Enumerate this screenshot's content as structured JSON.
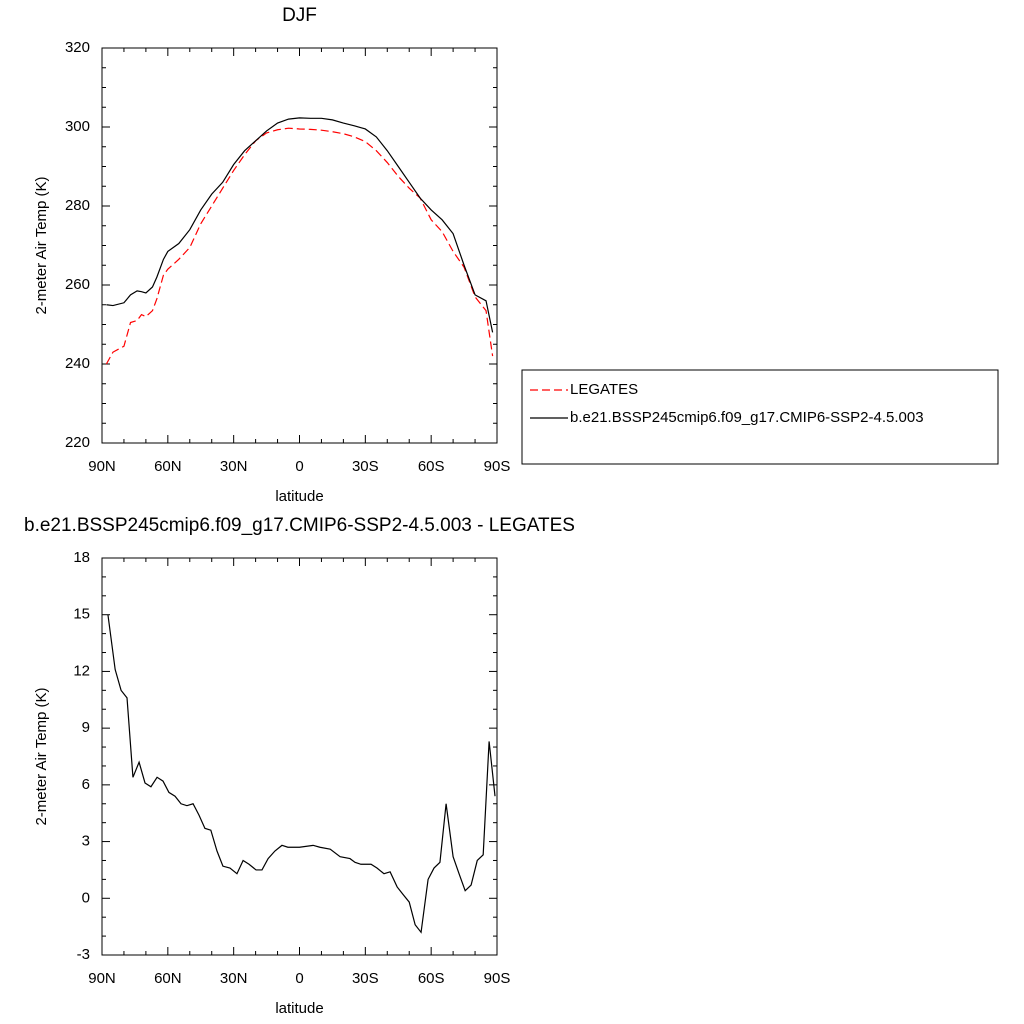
{
  "chart_data": [
    {
      "type": "line",
      "title": "DJF",
      "x_label": "latitude",
      "y_label": "2-meter Air Temp (K)",
      "xlim": [
        90,
        -90
      ],
      "xticks": [
        {
          "value": 90,
          "label": "90N"
        },
        {
          "value": 60,
          "label": "60N"
        },
        {
          "value": 30,
          "label": "30N"
        },
        0,
        {
          "value": -30,
          "label": "30S"
        },
        {
          "value": -60,
          "label": "60S"
        },
        {
          "value": -90,
          "label": "90S"
        }
      ],
      "ylim": [
        220,
        320
      ],
      "yticks": [
        220,
        240,
        260,
        280,
        300,
        320
      ],
      "legend": "right",
      "x": [
        88,
        85,
        80,
        77,
        74,
        72,
        70,
        67,
        65,
        62,
        60,
        55,
        50,
        45,
        40,
        35,
        30,
        25,
        20,
        15,
        10,
        5,
        0,
        -5,
        -10,
        -15,
        -20,
        -25,
        -30,
        -35,
        -40,
        -45,
        -50,
        -55,
        -60,
        -65,
        -70,
        -75,
        -80,
        -85,
        -88
      ],
      "series": [
        {
          "name": "LEGATES",
          "color": "#ff0000",
          "dashed": true,
          "values": [
            240,
            243,
            244.5,
            250.5,
            251,
            252.5,
            252,
            253.5,
            256.5,
            262.5,
            264,
            266.5,
            269.5,
            275.5,
            280,
            284.5,
            289,
            293,
            296.5,
            298.5,
            299.3,
            299.7,
            299.5,
            299.4,
            299.2,
            298.8,
            298.3,
            297.5,
            296.3,
            294,
            291,
            287.5,
            284.5,
            282,
            276.5,
            273.5,
            268.5,
            264.5,
            257,
            253.5,
            242
          ]
        },
        {
          "name": "b.e21.BSSP245cmip6.f09_g17.CMIP6-SSP2-4.5.003",
          "color": "#000000",
          "dashed": false,
          "values": [
            255,
            254.8,
            255.5,
            257.5,
            258.5,
            258.3,
            258,
            259.5,
            262,
            266.5,
            268.5,
            270.5,
            274,
            279,
            283,
            286,
            290.5,
            294,
            296.5,
            299,
            301,
            302,
            302.3,
            302.2,
            302.2,
            301.8,
            301,
            300.3,
            299.5,
            297.5,
            294,
            290,
            286,
            282,
            279,
            276.5,
            273,
            265,
            257.5,
            256,
            248
          ]
        }
      ]
    },
    {
      "type": "line",
      "title": "b.e21.BSSP245cmip6.f09_g17.CMIP6-SSP2-4.5.003 - LEGATES",
      "x_label": "latitude",
      "y_label": "2-meter Air Temp (K)",
      "xlim": [
        90,
        -90
      ],
      "xticks": [
        {
          "value": 90,
          "label": "90N"
        },
        {
          "value": 60,
          "label": "60N"
        },
        {
          "value": 30,
          "label": "30N"
        },
        0,
        {
          "value": -30,
          "label": "30S"
        },
        {
          "value": -60,
          "label": "60S"
        },
        {
          "value": -90,
          "label": "90S"
        }
      ],
      "ylim": [
        -3,
        18
      ],
      "yticks": [
        -3,
        0,
        3,
        6,
        9,
        12,
        15,
        18
      ],
      "x": [
        87.3,
        84,
        81.3,
        78.6,
        75.9,
        73.1,
        70.4,
        67.7,
        64.9,
        62.2,
        59.5,
        56.7,
        54,
        51.3,
        48.5,
        45.8,
        43.1,
        40.4,
        37.6,
        34.9,
        31.7,
        28.5,
        25.7,
        23,
        19.8,
        17.1,
        14.3,
        11.2,
        8,
        5.3,
        0,
        -6.2,
        -9.3,
        -14,
        -18.5,
        -23,
        -25.3,
        -28,
        -32.6,
        -35.3,
        -38.5,
        -41.3,
        -44.5,
        -47.2,
        -50,
        -52.7,
        -55.4,
        -58.6,
        -61.3,
        -64,
        -66.8,
        -70,
        -72.7,
        -75.5,
        -78.2,
        -81,
        -83.7,
        -86.4,
        -89.1
      ],
      "series": [
        {
          "color": "#000000",
          "dashed": false,
          "values": [
            15,
            12.1,
            11,
            10.6,
            6.4,
            7.2,
            6.1,
            5.9,
            6.4,
            6.2,
            5.6,
            5.4,
            5,
            4.9,
            5,
            4.4,
            3.7,
            3.6,
            2.5,
            1.7,
            1.6,
            1.3,
            2,
            1.8,
            1.5,
            1.5,
            2.1,
            2.5,
            2.8,
            2.7,
            2.7,
            2.8,
            2.7,
            2.6,
            2.2,
            2.1,
            1.9,
            1.8,
            1.8,
            1.6,
            1.3,
            1.4,
            0.6,
            0.2,
            -0.2,
            -1.4,
            -1.8,
            1,
            1.6,
            1.9,
            5,
            2.2,
            1.3,
            0.4,
            0.7,
            2,
            2.3,
            8.3,
            5.4
          ]
        }
      ]
    }
  ]
}
